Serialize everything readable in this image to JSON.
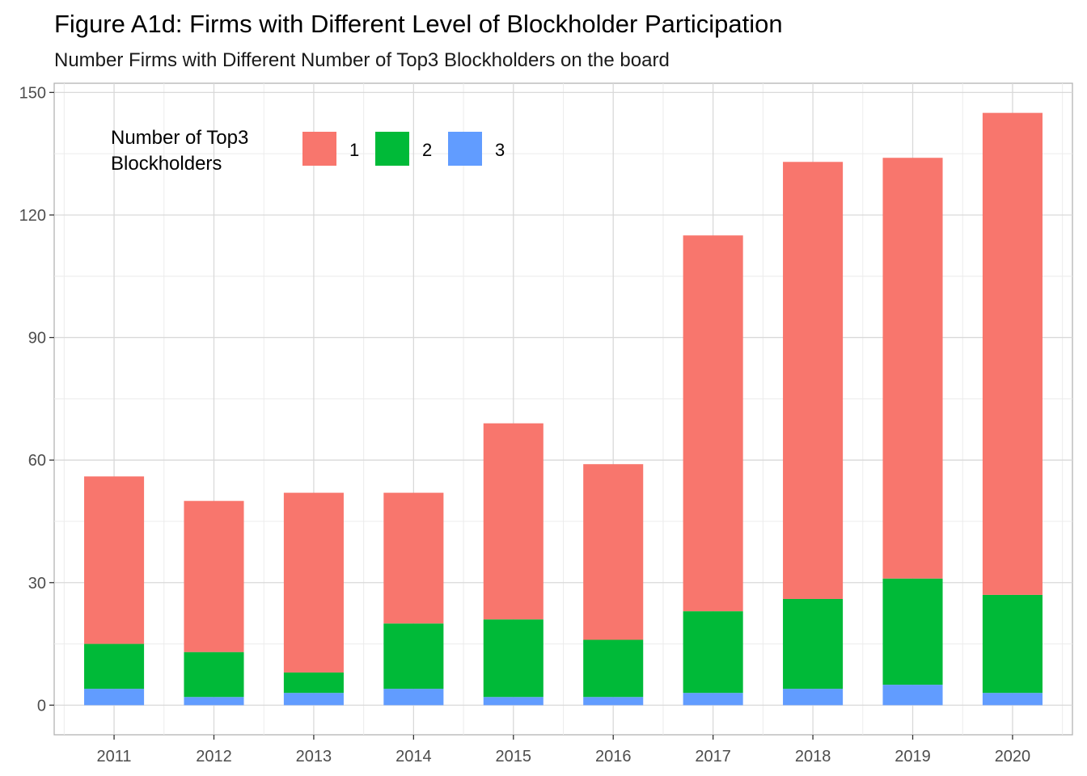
{
  "chart_data": {
    "type": "bar",
    "stacked": true,
    "title": "Figure A1d: Firms with Different Level of Blockholder Participation",
    "subtitle": "Number Firms with Different Number of Top3 Blockholders on the board",
    "xlabel": "",
    "ylabel": "",
    "categories": [
      "2011",
      "2012",
      "2013",
      "2014",
      "2015",
      "2016",
      "2017",
      "2018",
      "2019",
      "2020"
    ],
    "series": [
      {
        "name": "3",
        "color": "#619CFF",
        "values": [
          4,
          2,
          3,
          4,
          2,
          2,
          3,
          4,
          5,
          3
        ]
      },
      {
        "name": "2",
        "color": "#00BA38",
        "values": [
          11,
          11,
          5,
          16,
          19,
          14,
          20,
          22,
          26,
          24
        ]
      },
      {
        "name": "1",
        "color": "#F8766D",
        "values": [
          41,
          37,
          44,
          32,
          48,
          43,
          92,
          107,
          103,
          118
        ]
      }
    ],
    "ylim": [
      -7.25,
      152.25
    ],
    "yticks": [
      "0",
      "30",
      "60",
      "90",
      "120",
      "150"
    ],
    "grid": true,
    "legend": {
      "title_lines": [
        "Number of Top3",
        "Blockholders"
      ],
      "order": [
        "1",
        "2",
        "3"
      ],
      "position": "top-left inside"
    }
  }
}
